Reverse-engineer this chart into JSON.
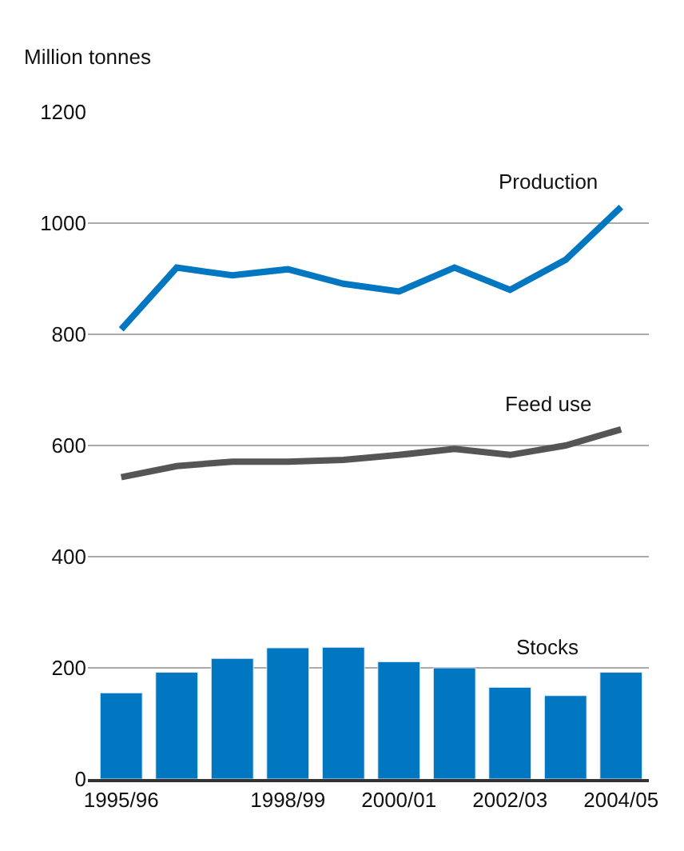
{
  "chart_data": {
    "type": "line",
    "ylabel": "Million tonnes",
    "categories": [
      "1995/96",
      null,
      null,
      "1998/99",
      null,
      "2000/01",
      null,
      "2002/03",
      null,
      "2004/05"
    ],
    "series": [
      {
        "name": "Stocks",
        "type": "bar",
        "color": "#0077c0",
        "values": [
          155,
          192,
          217,
          236,
          237,
          211,
          200,
          165,
          150,
          192
        ]
      },
      {
        "name": "Feed use",
        "color": "#555555",
        "values": [
          543,
          563,
          571,
          571,
          574,
          583,
          594,
          583,
          600,
          629
        ]
      },
      {
        "name": "Production",
        "color": "#0077c0",
        "values": [
          809,
          920,
          906,
          917,
          891,
          877,
          920,
          880,
          934,
          1029
        ]
      }
    ],
    "ylim": [
      0,
      1200
    ],
    "yticks": [
      0,
      200,
      400,
      600,
      800,
      1000,
      1200
    ],
    "grid": "y",
    "legend": false,
    "marker": "none",
    "line_style": "solid"
  }
}
